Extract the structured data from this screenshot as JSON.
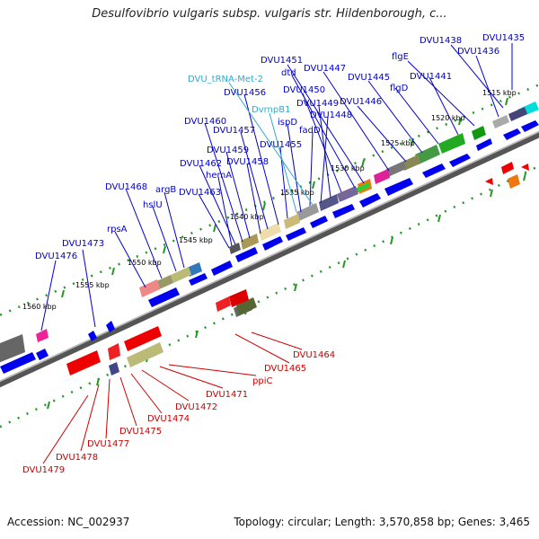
{
  "title": "Desulfovibrio vulgaris subsp. vulgaris str. Hildenborough, c...",
  "footer": {
    "accession": "Accession: NC_002937",
    "summary": "Topology: circular; Length: 3,570,858 bp; Genes: 3,465"
  },
  "colors": {
    "forward_label": "#0000cc",
    "reverse_label": "#cc0000",
    "rna_label": "#33aacc",
    "forward_arrow": "#0000ee",
    "reverse_arrow": "#ee0000",
    "ruler": "#555555",
    "ticks": "#229922"
  },
  "scale_ticks": [
    "1515 kbp",
    "1520 kbp",
    "1525 kbp",
    "1530 kbp",
    "1535 kbp",
    "1540 kbp",
    "1545 kbp",
    "1550 kbp",
    "1555 kbp",
    "1560 kbp"
  ],
  "forward_labels": [
    "DVU1435",
    "DVU1438",
    "DVU1436",
    "flgE",
    "DVU1441",
    "flgD",
    "DVU1445",
    "DVU1446",
    "DVU1447",
    "DVU1451",
    "dtd",
    "DVU1450",
    "DVU1449",
    "DVU1448",
    "fadD",
    "ispD",
    "DVU1455",
    "DVU1456",
    "DVU1457",
    "DVU1458",
    "DVU1459",
    "DVU1460",
    "DVU1462",
    "hemA",
    "DVU1463",
    "argB",
    "hslU",
    "DVU1468",
    "rpsA",
    "DVU1473",
    "DVU1476"
  ],
  "rna_labels": [
    "DVU_tRNA-Met-2",
    "DvrnpB1"
  ],
  "reverse_labels": [
    "DVU1464",
    "DVU1465",
    "ppiC",
    "DVU1471",
    "DVU1472",
    "DVU1474",
    "DVU1475",
    "DVU1477",
    "DVU1478",
    "DVU1479"
  ]
}
